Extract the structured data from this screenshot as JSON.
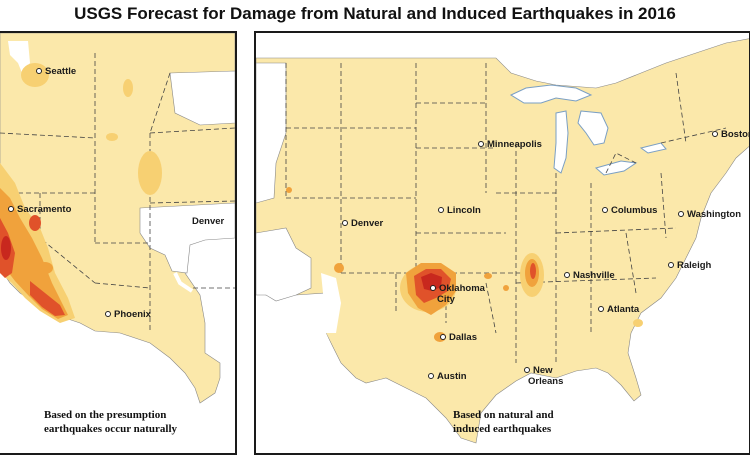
{
  "title": "USGS Forecast for Damage from Natural and Induced Earthquakes in 2016",
  "colors": {
    "land": "#fbe8aa",
    "low_hazard": "#f7d072",
    "moderate_hazard": "#f0a23c",
    "high_hazard": "#e0522a",
    "very_high_hazard": "#c8281e",
    "water": "#ffffff",
    "border": "#555555"
  },
  "left_map": {
    "caption_line1": "Based on the presumption",
    "caption_line2": "earthquakes occur naturally",
    "cities": {
      "seattle": "Seattle",
      "sacramento": "Sacramento",
      "denver": "Denver",
      "phoenix": "Phoenix"
    }
  },
  "right_map": {
    "caption_line1": "Based on natural and",
    "caption_line2": "induced earthquakes",
    "cities": {
      "minneapolis": "Minneapolis",
      "boston": "Boston",
      "denver": "Denver",
      "lincoln": "Lincoln",
      "columbus": "Columbus",
      "washington": "Washington",
      "nashville": "Nashville",
      "raleigh": "Raleigh",
      "oklahoma_city_1": "Oklahoma",
      "oklahoma_city_2": "City",
      "atlanta": "Atlanta",
      "dallas": "Dallas",
      "austin": "Austin",
      "new_orleans_1": "New",
      "new_orleans_2": "Orleans"
    }
  }
}
